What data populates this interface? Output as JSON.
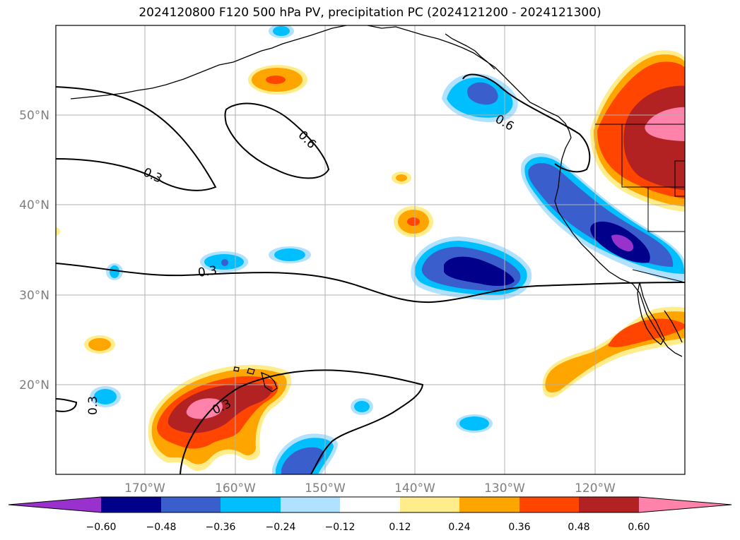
{
  "title": "2024120800 F120 500 hPa PV, precipitation PC (2024121200 - 2024121300)",
  "map": {
    "lon_labels": [
      "170°W",
      "160°W",
      "150°W",
      "140°W",
      "130°W",
      "120°W"
    ],
    "lat_labels": [
      "50°N",
      "40°N",
      "30°N",
      "20°N"
    ],
    "contour_labels": [
      "0.3",
      "0.6",
      "0.3",
      "0.6",
      "0.3",
      "0.3"
    ]
  },
  "colorbar": {
    "ticks": [
      "−0.60",
      "−0.48",
      "−0.36",
      "−0.24",
      "−0.12",
      "0.12",
      "0.24",
      "0.36",
      "0.48",
      "0.60"
    ],
    "colors": [
      "#9932cc",
      "#00008b",
      "#3a5fcd",
      "#00bfff",
      "#b0e2ff",
      "#ffffff",
      "#ffec8b",
      "#ffa500",
      "#ff4500",
      "#b22222",
      "#ff82ab"
    ]
  },
  "colors": {
    "neg_weak": "#b0e2ff",
    "neg_1": "#00bfff",
    "neg_2": "#3a5fcd",
    "neg_3": "#00008b",
    "neg_4": "#9932cc",
    "pos_weak": "#ffec8b",
    "pos_1": "#ffa500",
    "pos_2": "#ff4500",
    "pos_3": "#b22222",
    "pos_4": "#ff82ab",
    "grid": "#b0b0b0",
    "coast": "#000000"
  }
}
